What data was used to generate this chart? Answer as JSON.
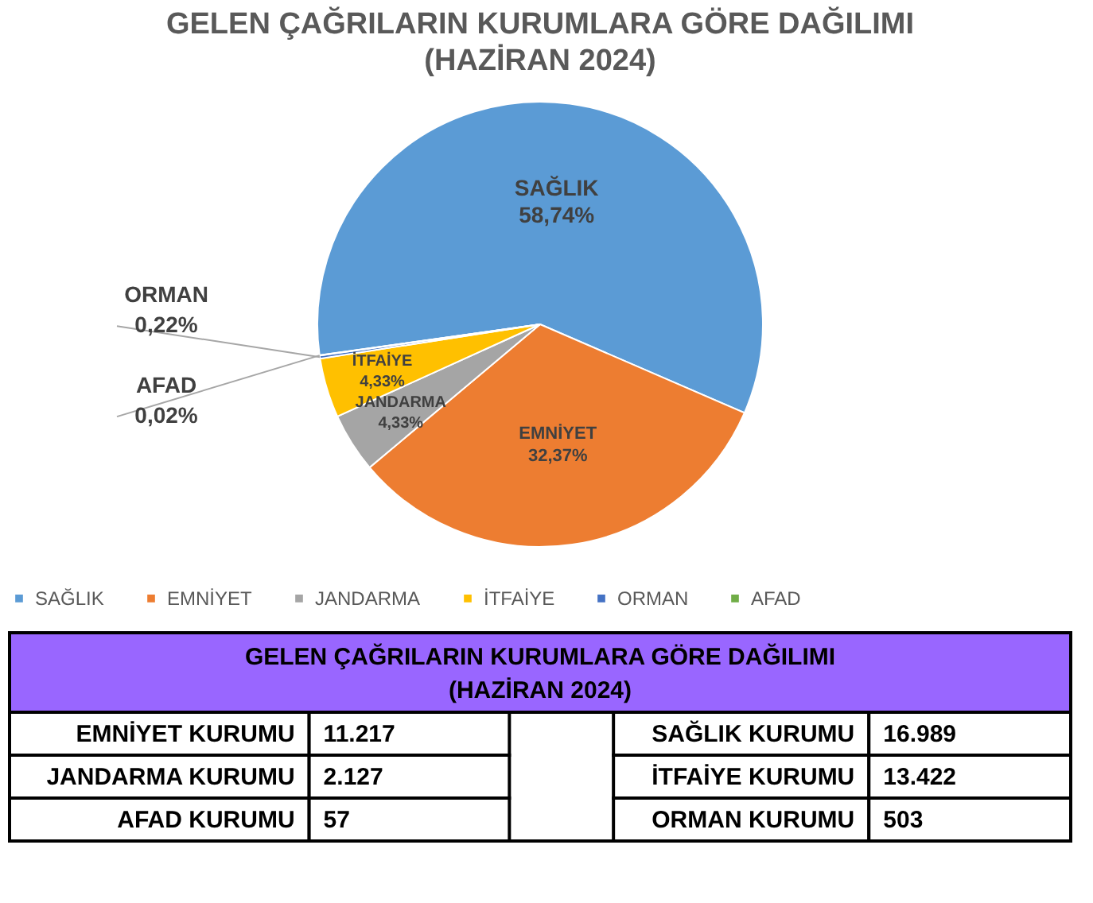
{
  "chart_data": [
    {
      "type": "pie",
      "title": "GELEN ÇAĞRILARIN KURUMLARA GÖRE DAĞILIMI",
      "subtitle": "(HAZİRAN 2024)",
      "categories": [
        "SAĞLIK",
        "EMNİYET",
        "JANDARMA",
        "İTFAİYE",
        "ORMAN",
        "AFAD"
      ],
      "values": [
        58.74,
        32.37,
        4.33,
        4.33,
        0.22,
        0.02
      ],
      "value_labels": [
        "58,74%",
        "32,37%",
        "4,33%",
        "4,33%",
        "0,22%",
        "0,02%"
      ],
      "colors": [
        "#5b9bd5",
        "#ed7d31",
        "#a5a5a5",
        "#ffc000",
        "#4472c4",
        "#70ad47"
      ],
      "legend": "bottom"
    },
    {
      "type": "other",
      "title": "GELEN ÇAĞRILARIN KURUMLARA GÖRE DAĞILIMI",
      "subtitle": "(HAZİRAN 2024)",
      "categories": [
        "EMNİYET KURUMU",
        "JANDARMA KURUMU",
        "AFAD KURUMU",
        "SAĞLIK KURUMU",
        "İTFAİYE KURUMU",
        "ORMAN KURUMU"
      ],
      "values": [
        11217,
        2127,
        57,
        16989,
        13422,
        503
      ],
      "value_labels": [
        "11.217",
        "2.127",
        "57",
        "16.989",
        "13.422",
        "503"
      ]
    }
  ]
}
